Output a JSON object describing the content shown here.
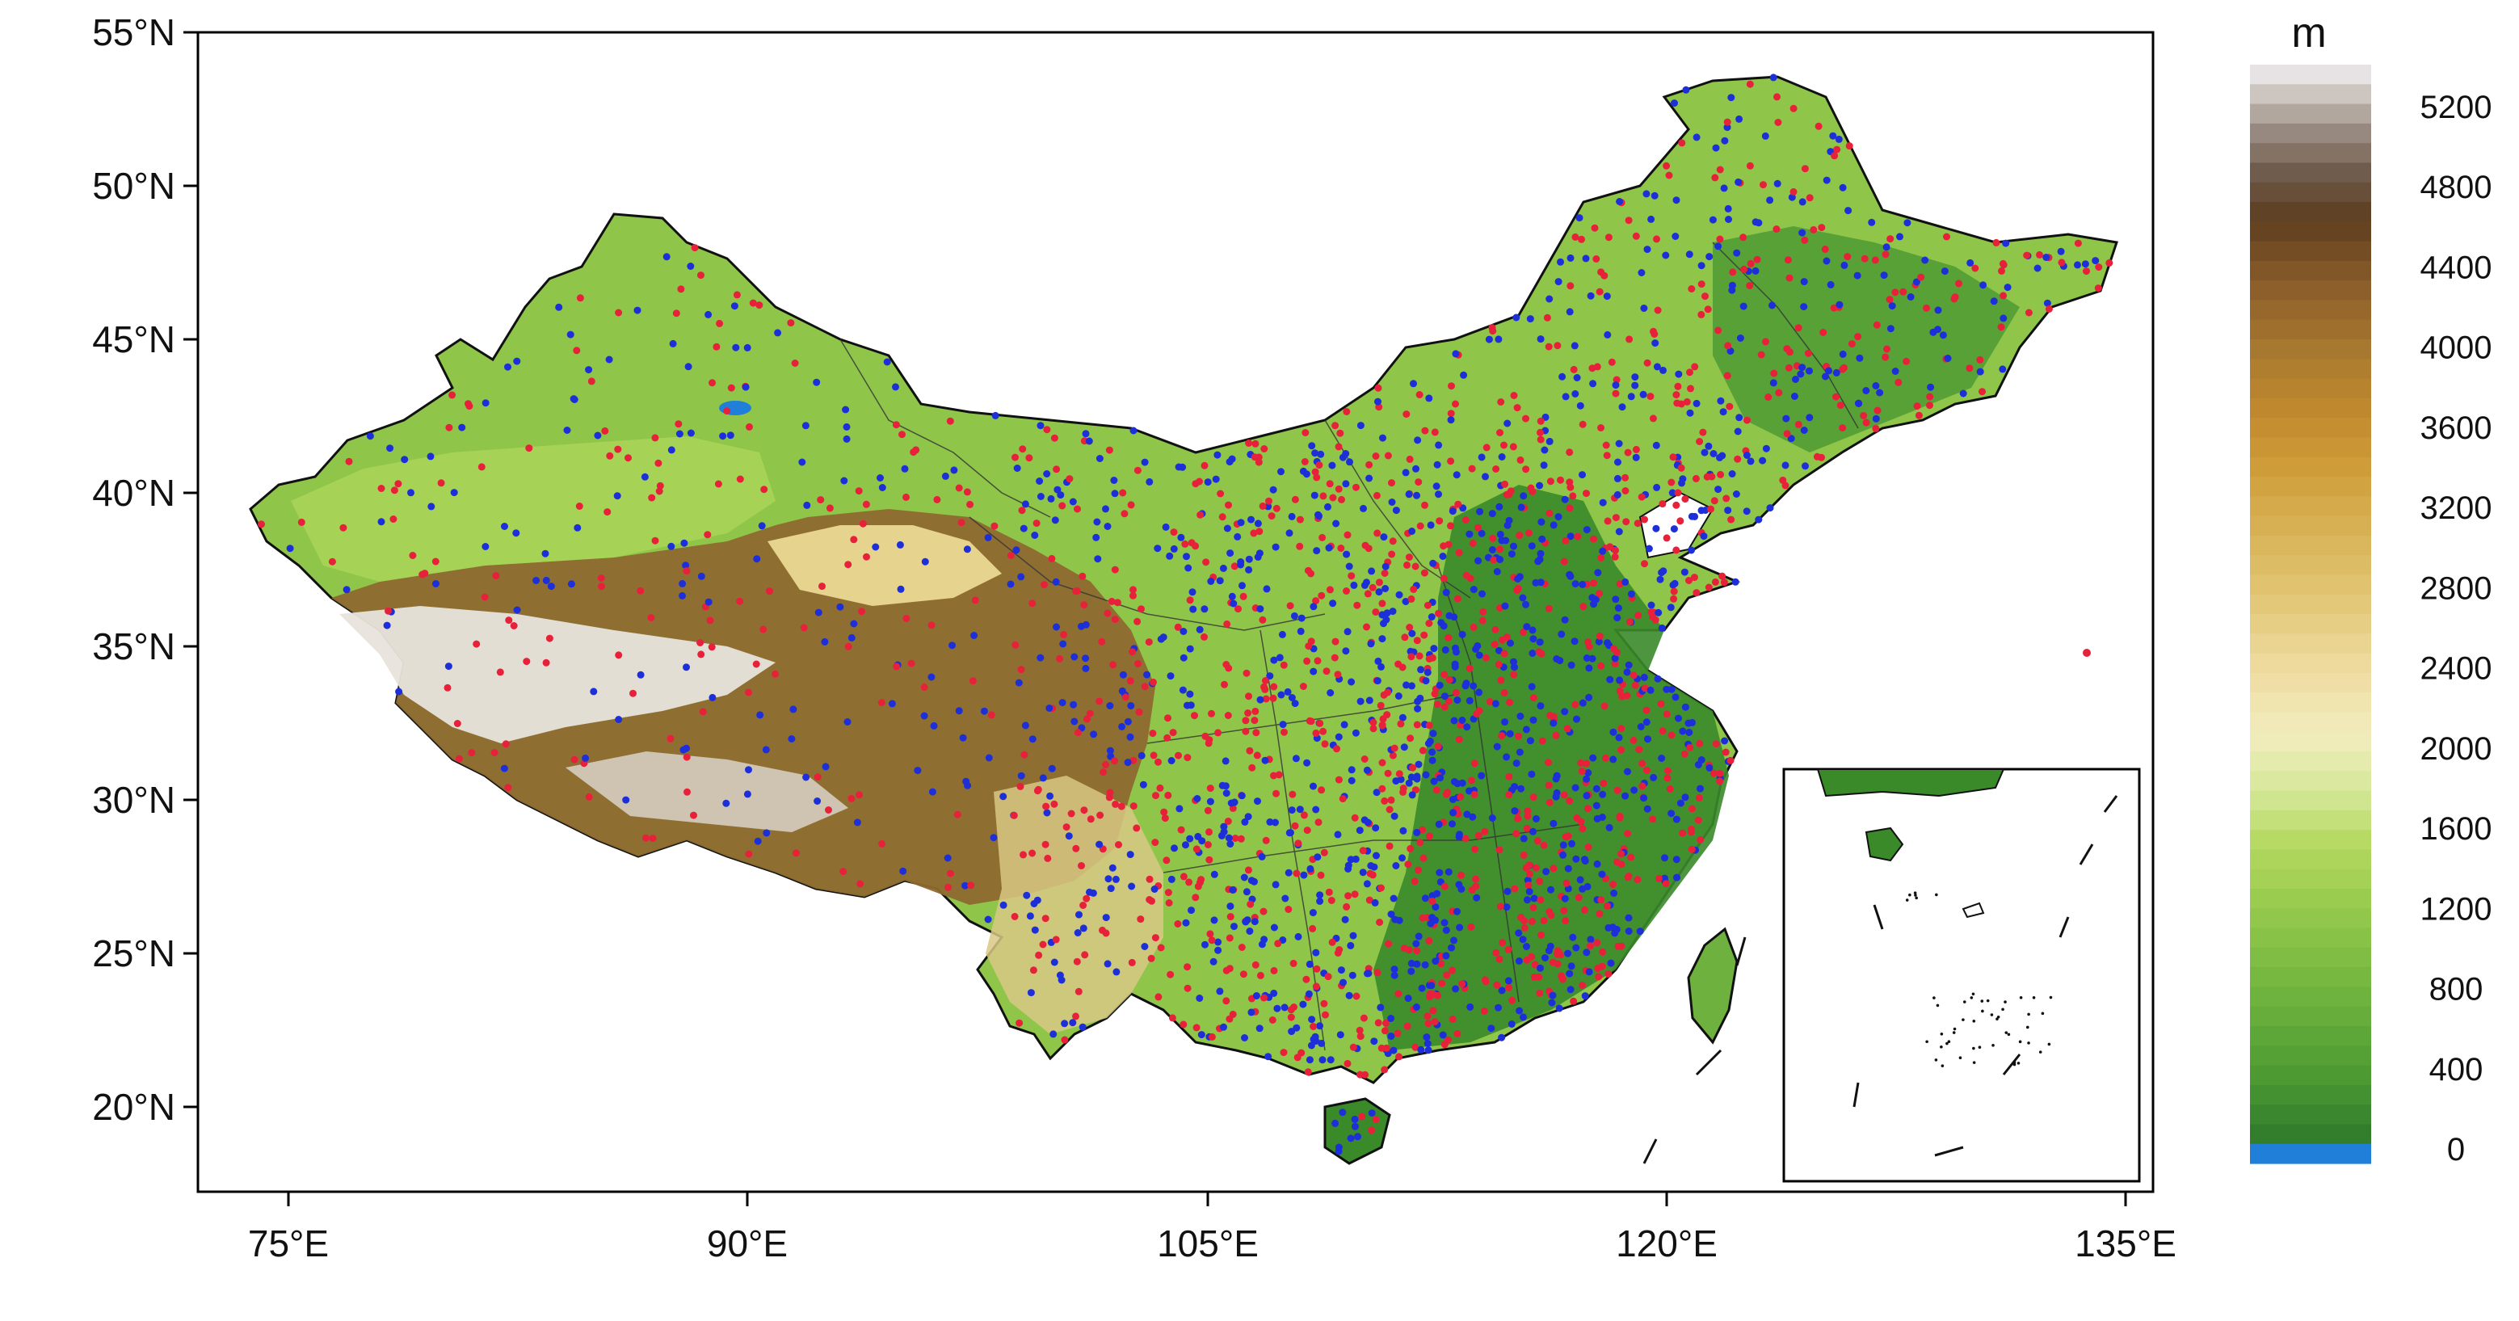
{
  "map": {
    "type": "station-map-over-terrain",
    "region": "China",
    "lat_ticks": [
      "55°N",
      "50°N",
      "45°N",
      "40°N",
      "35°N",
      "30°N",
      "25°N",
      "20°N"
    ],
    "lon_ticks": [
      "75°E",
      "90°E",
      "105°E",
      "120°E",
      "135°E"
    ],
    "lat_range": [
      17,
      55
    ],
    "lon_range": [
      72,
      136
    ],
    "station_colors": {
      "red": "#e8213b",
      "blue": "#1c2fd9"
    },
    "inset": "South China Sea"
  },
  "colorbar": {
    "unit": "m",
    "labels": [
      "5200",
      "4800",
      "4400",
      "4000",
      "3600",
      "3200",
      "2800",
      "2400",
      "2000",
      "1600",
      "1200",
      "800",
      "400",
      "0"
    ],
    "water_color": "#1f7fd9"
  }
}
